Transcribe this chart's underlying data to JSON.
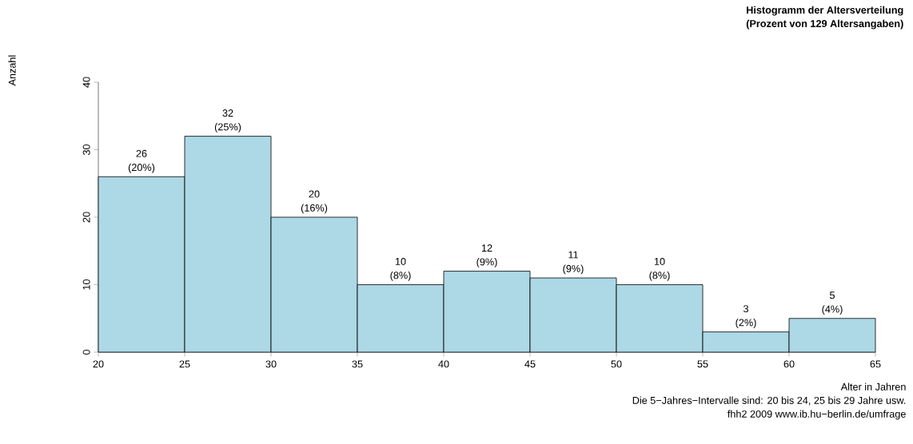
{
  "chart_data": {
    "type": "histogram",
    "title": "Histogramm der Altersverteilung",
    "subtitle": "(Prozent von 129 Altersangaben)",
    "xlabel": "Alter in Jahren",
    "bins": [
      20,
      25,
      30,
      35,
      40,
      45,
      50,
      55,
      60,
      65
    ],
    "values": [
      26,
      32,
      20,
      10,
      12,
      11,
      10,
      3,
      5
    ],
    "value_labels": [
      "26 (20%)",
      "32 (25%)",
      "20 (16%)",
      "10 (8%)",
      "12 (9%)",
      "11 (9%)",
      "10 (8%)",
      "3 (2%)",
      "5 (4%)"
    ],
    "color": "#add8e6",
    "xlim": [
      20,
      65
    ],
    "ylim": [
      0,
      40
    ],
    "xticks": [
      20,
      25,
      30,
      35,
      40,
      45,
      50,
      55,
      60,
      65
    ],
    "yticks": [
      0,
      10,
      20,
      30,
      40
    ],
    "grid": false,
    "annotations": [
      "Anzahl",
      "Die 5−Jahres−Intervalle sind: 20 bis 24, 25 bis 29 Jahre usw.",
      "fhh2 2009 www.ib.hu−berlin.de/umfrage"
    ]
  }
}
